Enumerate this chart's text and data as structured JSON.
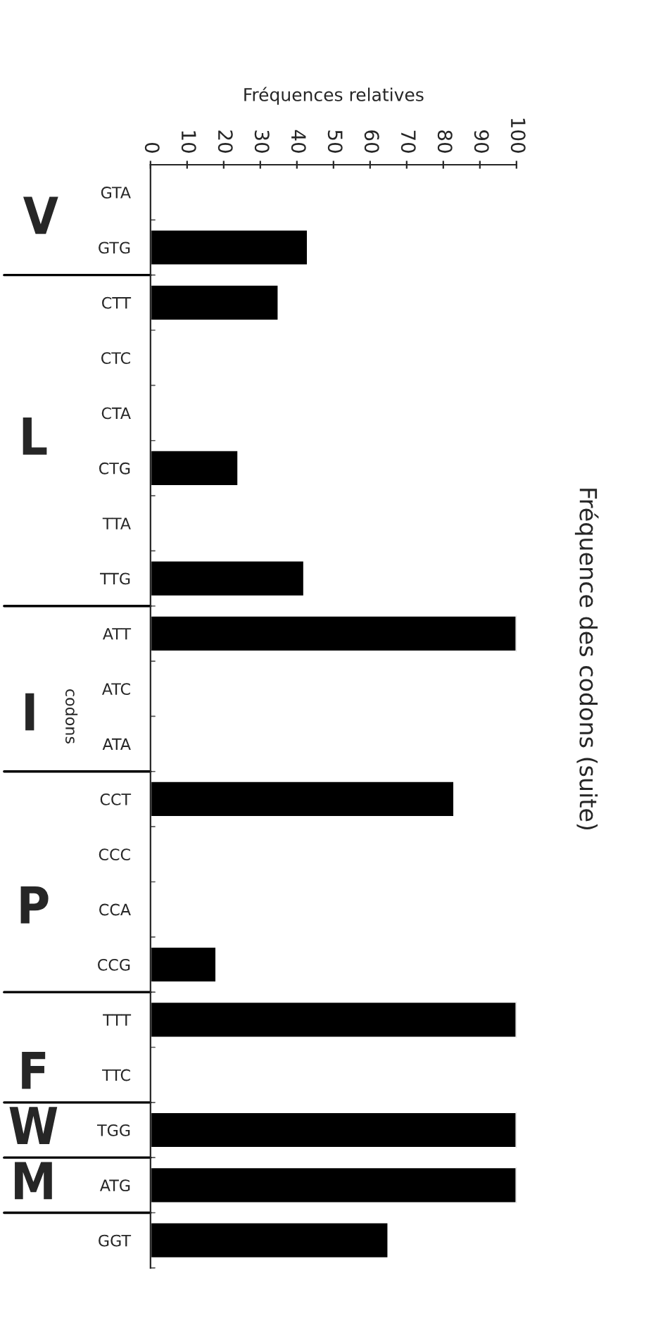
{
  "chart_data": {
    "type": "bar",
    "orientation": "horizontal",
    "title": "Fréquence des codons (suite)",
    "xlabel": "Fréquences relatives",
    "categories": [
      "GTA",
      "GTG",
      "CTT",
      "CTC",
      "CTA",
      "CTG",
      "TTA",
      "TTG",
      "ATT",
      "ATC",
      "ATA",
      "CCT",
      "CCC",
      "CCA",
      "CCG",
      "TTT",
      "TTC",
      "TGG",
      "ATG",
      "GGT"
    ],
    "values": [
      null,
      43,
      35,
      null,
      null,
      24,
      null,
      42,
      100,
      null,
      null,
      83,
      null,
      null,
      18,
      100,
      null,
      100,
      100,
      65
    ],
    "color": "#000000",
    "xlim": [
      0,
      100
    ],
    "xticks": [
      0,
      10,
      20,
      30,
      40,
      50,
      60,
      70,
      80,
      90,
      100
    ],
    "annotations": [
      "V",
      "L",
      "I",
      "codons",
      "P",
      "F",
      "W",
      "M"
    ],
    "grid": false,
    "legend": false
  }
}
